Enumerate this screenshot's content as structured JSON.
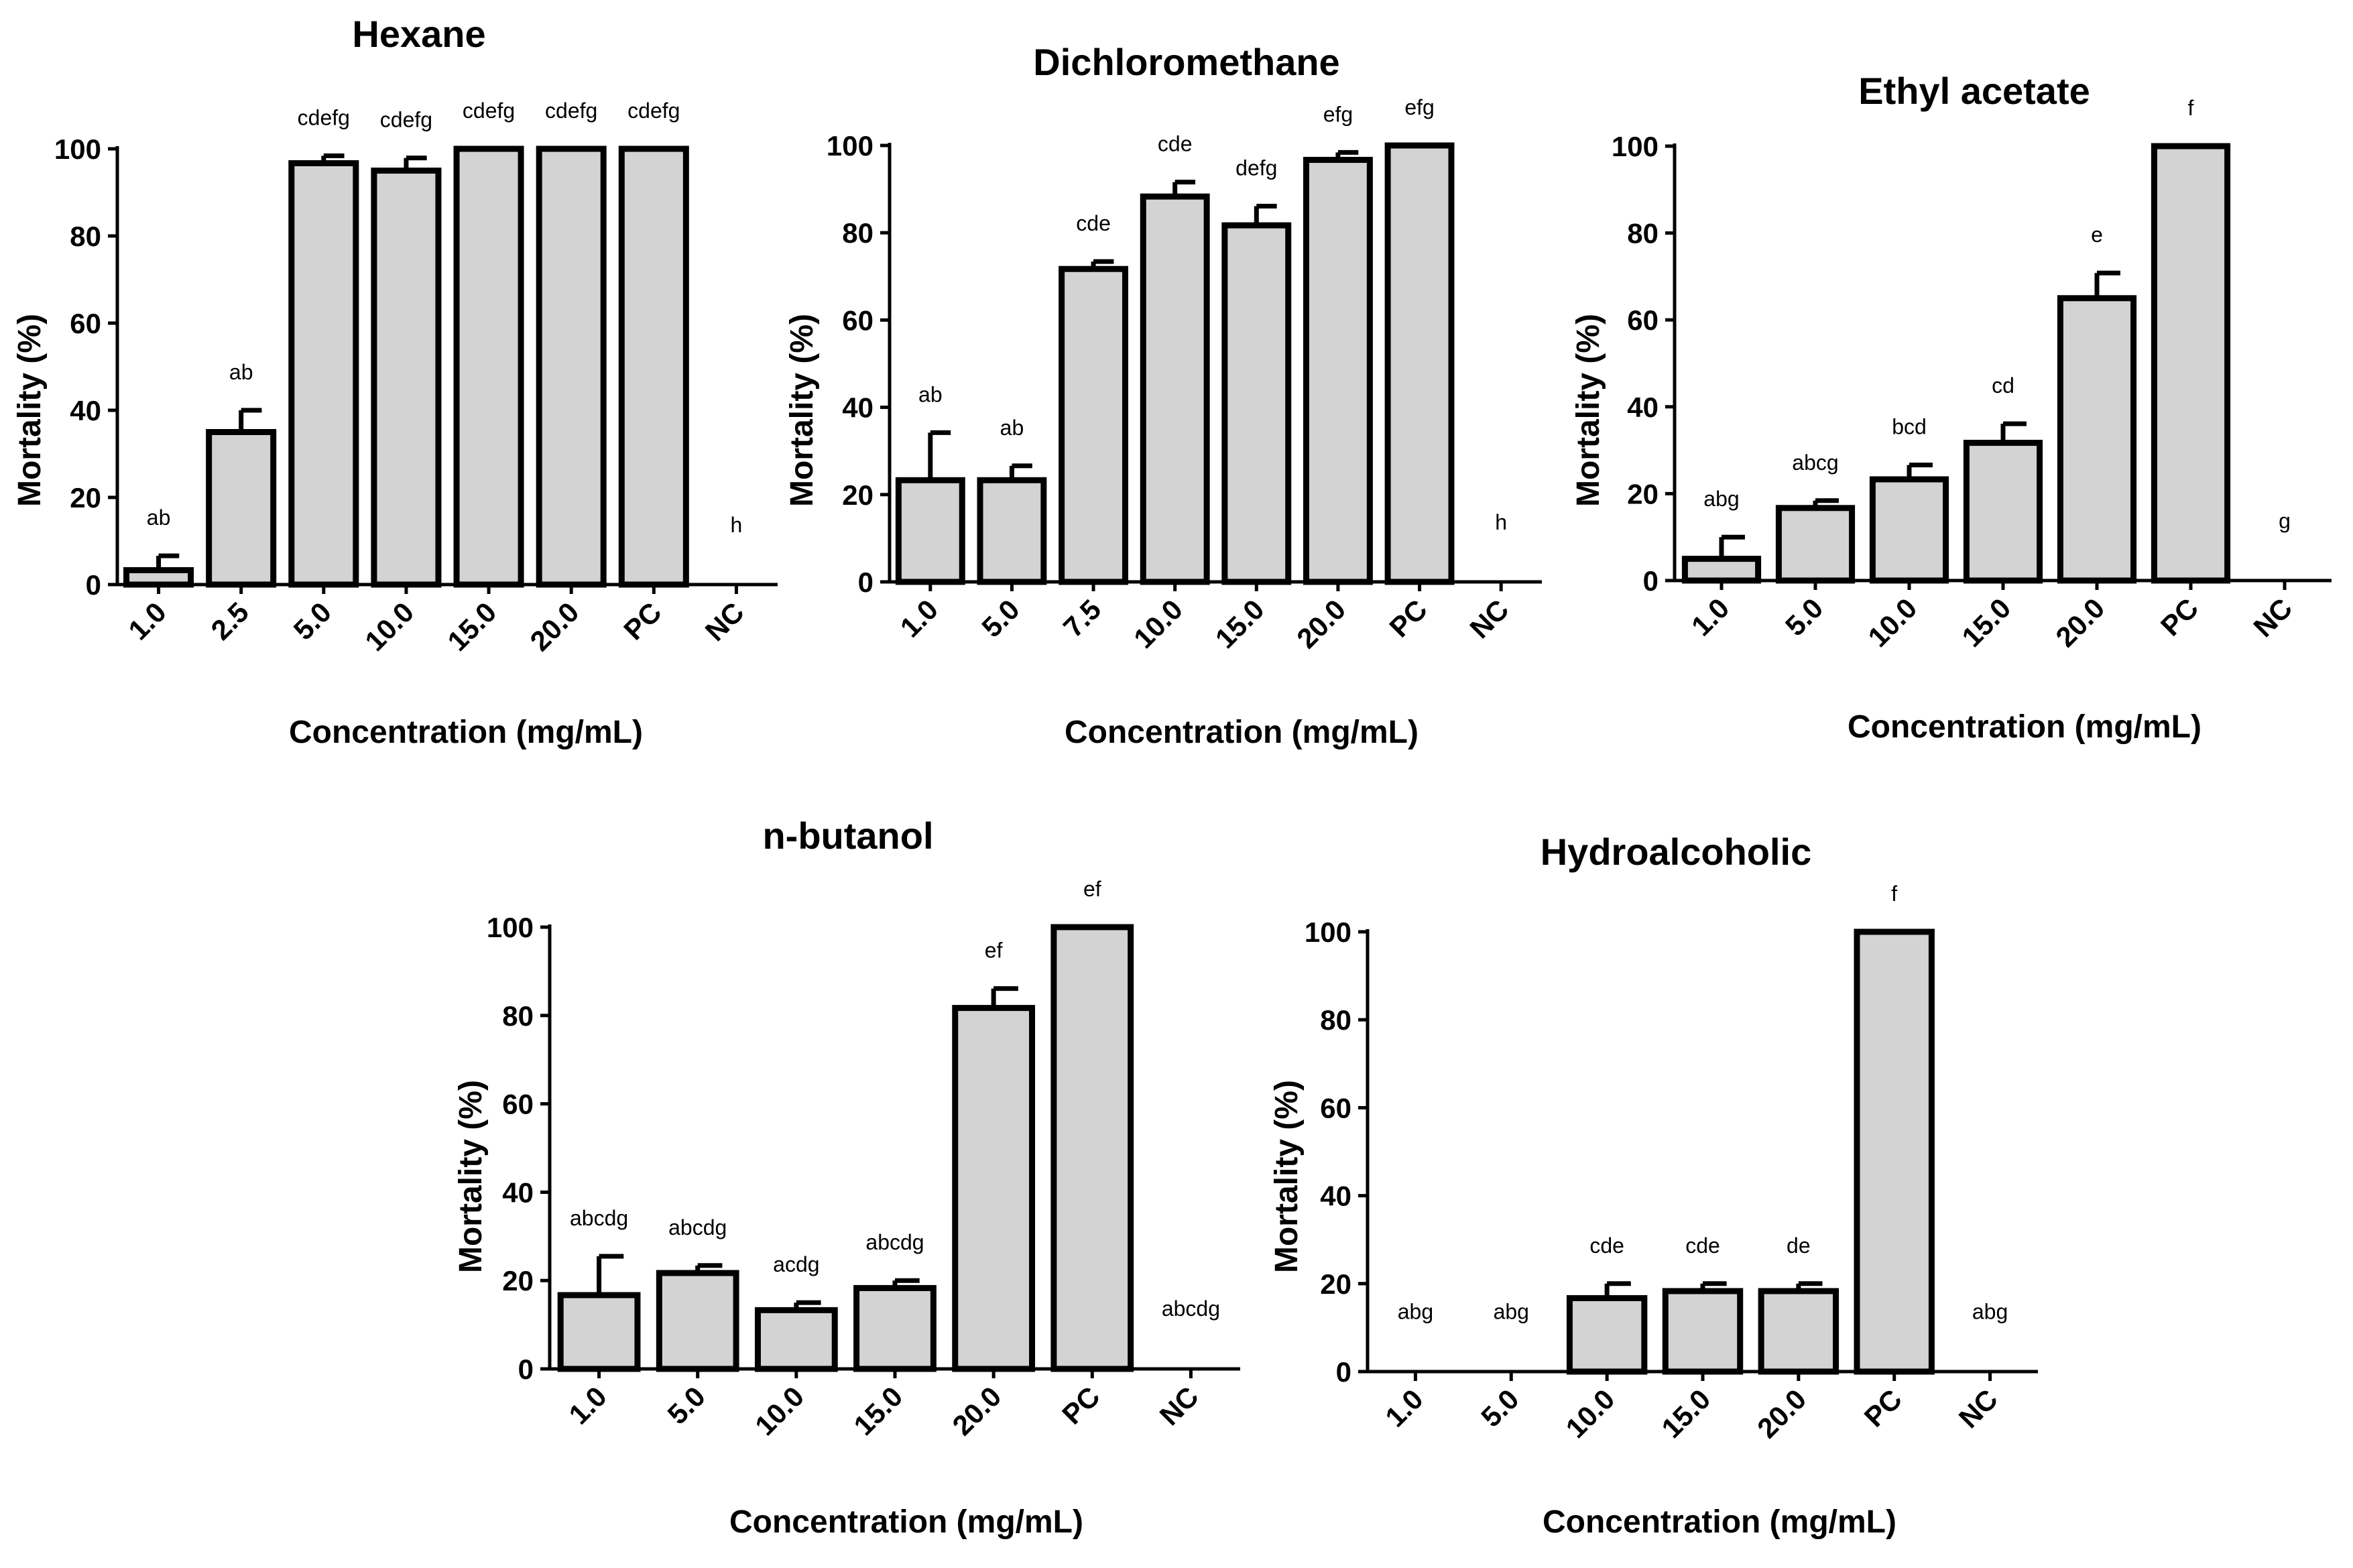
{
  "colors": {
    "bar_fill": "#d3d3d3",
    "stroke": "#000000",
    "background": "#ffffff"
  },
  "chart_data": [
    {
      "type": "bar",
      "title": "Hexane",
      "xlabel": "Concentration (mg/mL)",
      "ylabel": "Mortality (%)",
      "ylim": [
        0,
        100
      ],
      "yticks": [
        0,
        20,
        40,
        60,
        80,
        100
      ],
      "categories": [
        "1.0",
        "2.5",
        "5.0",
        "10.0",
        "15.0",
        "20.0",
        "PC",
        "NC"
      ],
      "values": [
        3.3,
        35,
        96.7,
        95,
        100,
        100,
        100,
        0
      ],
      "errors": [
        3.3,
        5,
        1.7,
        2.9,
        0,
        0,
        0,
        0
      ],
      "letters": [
        "ab",
        "ab",
        "cdefg",
        "cdefg",
        "cdefg",
        "cdefg",
        "cdefg",
        "h"
      ]
    },
    {
      "type": "bar",
      "title": "Dichloromethane",
      "xlabel": "Concentration (mg/mL)",
      "ylabel": "Mortality (%)",
      "ylim": [
        0,
        100
      ],
      "yticks": [
        0,
        20,
        40,
        60,
        80,
        100
      ],
      "categories": [
        "1.0",
        "5.0",
        "7.5",
        "10.0",
        "15.0",
        "20.0",
        "PC",
        "NC"
      ],
      "values": [
        23.3,
        23.3,
        71.7,
        88.3,
        81.7,
        96.7,
        100,
        0
      ],
      "errors": [
        10.9,
        3.3,
        1.7,
        3.3,
        4.4,
        1.7,
        0,
        0
      ],
      "letters": [
        "ab",
        "ab",
        "cde",
        "cde",
        "defg",
        "efg",
        "efg",
        "h"
      ]
    },
    {
      "type": "bar",
      "title": "Ethyl acetate",
      "xlabel": "Concentration (mg/mL)",
      "ylabel": "Mortality (%)",
      "ylim": [
        0,
        100
      ],
      "yticks": [
        0,
        20,
        40,
        60,
        80,
        100
      ],
      "categories": [
        "1.0",
        "5.0",
        "10.0",
        "15.0",
        "20.0",
        "PC",
        "NC"
      ],
      "values": [
        5,
        16.7,
        23.3,
        31.7,
        65,
        100,
        0
      ],
      "errors": [
        5,
        1.7,
        3.3,
        4.4,
        5.8,
        0,
        0
      ],
      "letters": [
        "abg",
        "abcg",
        "bcd",
        "cd",
        "e",
        "f",
        "g"
      ]
    },
    {
      "type": "bar",
      "title": "n-butanol",
      "xlabel": "Concentration (mg/mL)",
      "ylabel": "Mortality (%)",
      "ylim": [
        0,
        100
      ],
      "yticks": [
        0,
        20,
        40,
        60,
        80,
        100
      ],
      "categories": [
        "1.0",
        "5.0",
        "10.0",
        "15.0",
        "20.0",
        "PC",
        "NC"
      ],
      "values": [
        16.7,
        21.7,
        13.3,
        18.3,
        81.7,
        100,
        0
      ],
      "errors": [
        8.8,
        1.7,
        1.7,
        1.7,
        4.4,
        0,
        0
      ],
      "letters": [
        "abcdg",
        "abcdg",
        "acdg",
        "abcdg",
        "ef",
        "ef",
        "abcdg"
      ]
    },
    {
      "type": "bar",
      "title": "Hydroalcoholic",
      "xlabel": "Concentration (mg/mL)",
      "ylabel": "Mortality (%)",
      "ylim": [
        0,
        100
      ],
      "yticks": [
        0,
        20,
        40,
        60,
        80,
        100
      ],
      "categories": [
        "1.0",
        "5.0",
        "10.0",
        "15.0",
        "20.0",
        "PC",
        "NC"
      ],
      "values": [
        0,
        0,
        16.7,
        18.3,
        18.3,
        100,
        0
      ],
      "errors": [
        0,
        0,
        3.3,
        1.7,
        1.7,
        0,
        0
      ],
      "letters": [
        "abg",
        "abg",
        "cde",
        "cde",
        "de",
        "f",
        "abg"
      ]
    }
  ]
}
